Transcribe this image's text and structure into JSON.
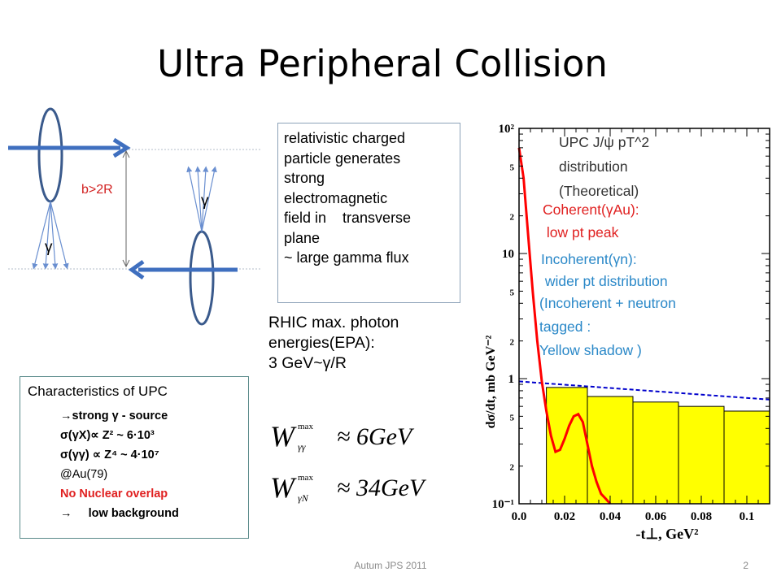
{
  "slide": {
    "title": "Ultra Peripheral Collision",
    "footer_center": "Autum JPS 2011",
    "page_number": "2"
  },
  "diagram": {
    "impact_label": "b>2R",
    "gamma_left": "γ",
    "gamma_right": "γ",
    "colors": {
      "ellipse": "#3a5a8c",
      "arrow": "#3f6fbf",
      "label": "#d22222"
    }
  },
  "info_box": {
    "lines": [
      "relativistic charged",
      "particle generates",
      "strong",
      "electromagnetic",
      "field in    transverse",
      "plane",
      "~ large gamma flux"
    ]
  },
  "rhic": {
    "lines": [
      "RHIC max. photon",
      "energies(EPA):",
      "3 GeV~γ/R"
    ]
  },
  "formulas": {
    "f1_sub": "γγ",
    "f1_value": "≈ 6GeV",
    "f2_sub": "γN",
    "f2_value": "≈ 34GeV",
    "w": "W",
    "sup": "max"
  },
  "characteristics": {
    "title": "Characteristics of  UPC",
    "line1": "→strong γ - source",
    "line2": "σ(γX)∝ Z² ~ 6·10³",
    "line3": "σ(γγ) ∝ Z⁴ ~ 4·10⁷",
    "line4": "@Au(79)",
    "line5": "No Nuclear overlap",
    "line6": "→     low background",
    "colors": {
      "red": "#e02020"
    }
  },
  "chart_data": {
    "type": "bar",
    "xlabel": "-t⊥, GeV²",
    "ylabel": "dσ/dt, mb GeV⁻²",
    "xlim": [
      0.0,
      0.11
    ],
    "ylim": [
      0.1,
      100
    ],
    "log_y": true,
    "x_ticks": [
      "0.0",
      "0.02",
      "0.04",
      "0.06",
      "0.08",
      "0.1"
    ],
    "y_ticks": [
      "10⁻¹",
      "2",
      "5",
      "1",
      "2",
      "5",
      "10",
      "2",
      "5",
      "10²"
    ],
    "incoherent_bins": {
      "edges": [
        0.012,
        0.03,
        0.05,
        0.07,
        0.09,
        0.11
      ],
      "values": [
        0.85,
        0.72,
        0.65,
        0.6,
        0.55
      ],
      "color": "#ffff00"
    },
    "incoherent_line": {
      "x": [
        0.0,
        0.11
      ],
      "y": [
        0.95,
        0.68
      ],
      "color": "#0000cc"
    },
    "coherent_curve": {
      "x": [
        0.0,
        0.002,
        0.004,
        0.006,
        0.008,
        0.01,
        0.012,
        0.014,
        0.016,
        0.018,
        0.02,
        0.022,
        0.024,
        0.026,
        0.028,
        0.03,
        0.032,
        0.034,
        0.036,
        0.038,
        0.04
      ],
      "y": [
        70,
        40,
        14,
        5,
        2,
        0.95,
        0.55,
        0.35,
        0.26,
        0.27,
        0.33,
        0.42,
        0.5,
        0.52,
        0.45,
        0.3,
        0.2,
        0.15,
        0.12,
        0.11,
        0.1
      ],
      "color": "#ff0000"
    },
    "annotations": {
      "title_lines": [
        "UPC J/ψ pT^2",
        "distribution",
        "(Theoretical)"
      ],
      "coherent_lines": [
        "Coherent(γAu):",
        " low pt peak"
      ],
      "incoherent_lines": [
        "Incoherent(γn):",
        " wider pt distribution",
        "(Incoherent + neutron",
        "tagged :",
        "Yellow shadow )"
      ],
      "coherent_color": "#e02020",
      "incoherent_color": "#2a88c8"
    }
  }
}
